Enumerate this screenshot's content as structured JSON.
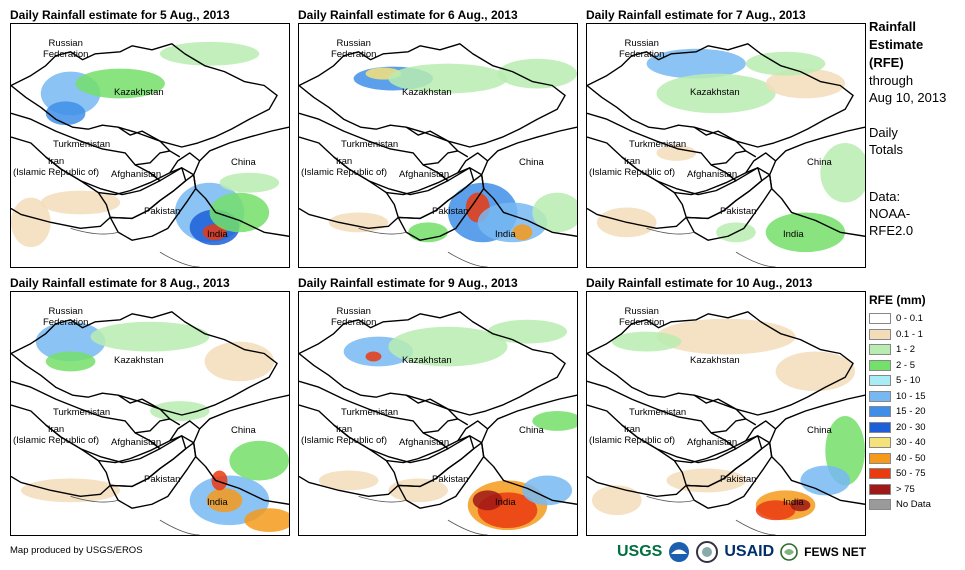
{
  "panels": [
    {
      "title": "Daily Rainfall estimate for 5 Aug., 2013"
    },
    {
      "title": "Daily Rainfall estimate for 6 Aug., 2013"
    },
    {
      "title": "Daily Rainfall estimate for 7 Aug., 2013"
    },
    {
      "title": "Daily Rainfall estimate for 8 Aug., 2013"
    },
    {
      "title": "Daily Rainfall estimate for 9 Aug., 2013"
    },
    {
      "title": "Daily Rainfall estimate for 10 Aug., 2013"
    }
  ],
  "countries": {
    "russia": "Russian\nFederation",
    "kazakhstan": "Kazakhstan",
    "turkmenistan": "Turkmenistan",
    "iran": "Iran\n(Islamic Republic of)",
    "afghanistan": "Afghanistan",
    "pakistan": "Pakistan",
    "china": "China",
    "india": "India"
  },
  "side_info": {
    "title_lines": [
      "Rainfall",
      "Estimate",
      "(RFE)"
    ],
    "through_lines": [
      "through",
      "Aug 10, 2013"
    ],
    "totals_lines": [
      "Daily",
      "Totals"
    ],
    "data_lines": [
      "Data:",
      "NOAA-",
      "RFE2.0"
    ]
  },
  "legend": {
    "title": "RFE (mm)",
    "items": [
      {
        "label": "0 - 0.1",
        "color": "#ffffff"
      },
      {
        "label": "0.1 - 1",
        "color": "#f3dcb8"
      },
      {
        "label": "1 - 2",
        "color": "#b8ecb0"
      },
      {
        "label": "2 - 5",
        "color": "#74df6a"
      },
      {
        "label": "5 - 10",
        "color": "#a8ecf6"
      },
      {
        "label": "10 - 15",
        "color": "#77b8f2"
      },
      {
        "label": "15 - 20",
        "color": "#3f8fe8"
      },
      {
        "label": "20 - 30",
        "color": "#1c5fd8"
      },
      {
        "label": "30 - 40",
        "color": "#f6e27a"
      },
      {
        "label": "40 - 50",
        "color": "#f59a1a"
      },
      {
        "label": "50 - 75",
        "color": "#ea3a10"
      },
      {
        "label": "> 75",
        "color": "#a01818"
      },
      {
        "label": "No Data",
        "color": "#9a9a9a"
      }
    ]
  },
  "footer": {
    "credit": "Map produced by USGS/EROS",
    "logos": [
      "USGS",
      "USAID",
      "FEWS NET"
    ]
  }
}
